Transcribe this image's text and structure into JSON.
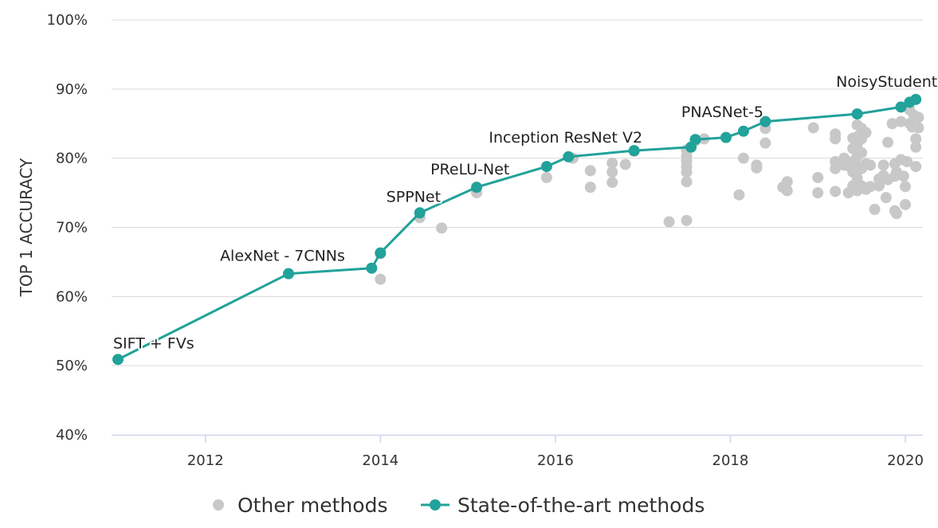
{
  "chart_data": {
    "type": "scatter",
    "xlabel": "",
    "ylabel": "TOP 1 ACCURACY",
    "xlim": [
      2011.0,
      2020.2
    ],
    "ylim": [
      40,
      100
    ],
    "x_ticks": [
      2012,
      2014,
      2016,
      2018,
      2020
    ],
    "x_tick_labels": [
      "2012",
      "2014",
      "2016",
      "2018",
      "2020"
    ],
    "y_ticks": [
      40,
      50,
      60,
      70,
      80,
      90,
      100
    ],
    "y_tick_labels": [
      "40%",
      "50%",
      "60%",
      "70%",
      "80%",
      "90%",
      "100%"
    ],
    "grid": "horizontal",
    "legend_position": "bottom",
    "colors": {
      "sota": "#21a29a",
      "other": "#c8c8c8",
      "grid": "#d9d9d9",
      "axis": "#ccd6eb"
    },
    "series": [
      {
        "name": "Other methods",
        "points": [
          [
            2014.0,
            62.5
          ],
          [
            2014.0,
            66.2
          ],
          [
            2014.45,
            71.4
          ],
          [
            2014.7,
            69.9
          ],
          [
            2015.1,
            75.0
          ],
          [
            2015.9,
            77.2
          ],
          [
            2016.2,
            80.0
          ],
          [
            2016.4,
            78.2
          ],
          [
            2016.4,
            75.8
          ],
          [
            2016.65,
            79.3
          ],
          [
            2016.65,
            78.0
          ],
          [
            2016.65,
            76.5
          ],
          [
            2016.8,
            79.1
          ],
          [
            2016.9,
            81.0
          ],
          [
            2017.3,
            70.8
          ],
          [
            2017.5,
            71.0
          ],
          [
            2017.5,
            76.6
          ],
          [
            2017.5,
            78.0
          ],
          [
            2017.5,
            78.8
          ],
          [
            2017.5,
            79.6
          ],
          [
            2017.5,
            80.3
          ],
          [
            2017.5,
            81.2
          ],
          [
            2017.6,
            82.5
          ],
          [
            2017.7,
            82.8
          ],
          [
            2018.1,
            74.7
          ],
          [
            2018.15,
            80.0
          ],
          [
            2018.3,
            78.6
          ],
          [
            2018.3,
            79.0
          ],
          [
            2018.4,
            82.2
          ],
          [
            2018.4,
            84.3
          ],
          [
            2018.6,
            75.8
          ],
          [
            2018.65,
            76.6
          ],
          [
            2018.65,
            75.3
          ],
          [
            2018.95,
            84.4
          ],
          [
            2019.0,
            77.2
          ],
          [
            2019.0,
            75.0
          ],
          [
            2019.2,
            83.5
          ],
          [
            2019.2,
            82.8
          ],
          [
            2019.2,
            79.5
          ],
          [
            2019.2,
            78.5
          ],
          [
            2019.2,
            75.2
          ],
          [
            2019.3,
            80.0
          ],
          [
            2019.3,
            79.0
          ],
          [
            2019.35,
            75.0
          ],
          [
            2019.35,
            78.9
          ],
          [
            2019.4,
            82.9
          ],
          [
            2019.4,
            81.4
          ],
          [
            2019.4,
            79.5
          ],
          [
            2019.4,
            78.0
          ],
          [
            2019.4,
            76.0
          ],
          [
            2019.45,
            84.8
          ],
          [
            2019.45,
            83.1
          ],
          [
            2019.45,
            82.0
          ],
          [
            2019.45,
            80.3
          ],
          [
            2019.45,
            79.0
          ],
          [
            2019.45,
            77.1
          ],
          [
            2019.45,
            75.3
          ],
          [
            2019.5,
            84.3
          ],
          [
            2019.5,
            82.8
          ],
          [
            2019.5,
            80.8
          ],
          [
            2019.5,
            78.5
          ],
          [
            2019.5,
            76.0
          ],
          [
            2019.55,
            83.7
          ],
          [
            2019.55,
            79.2
          ],
          [
            2019.55,
            75.5
          ],
          [
            2019.6,
            79.0
          ],
          [
            2019.6,
            75.9
          ],
          [
            2019.65,
            72.6
          ],
          [
            2019.7,
            77.0
          ],
          [
            2019.7,
            76.0
          ],
          [
            2019.75,
            79.0
          ],
          [
            2019.75,
            77.5
          ],
          [
            2019.78,
            74.3
          ],
          [
            2019.8,
            82.3
          ],
          [
            2019.8,
            76.9
          ],
          [
            2019.85,
            85.0
          ],
          [
            2019.88,
            79.2
          ],
          [
            2019.88,
            77.4
          ],
          [
            2019.88,
            72.4
          ],
          [
            2019.9,
            72.0
          ],
          [
            2019.9,
            78.0
          ],
          [
            2019.95,
            85.3
          ],
          [
            2019.95,
            79.8
          ],
          [
            2019.98,
            77.4
          ],
          [
            2020.0,
            75.9
          ],
          [
            2020.0,
            73.3
          ],
          [
            2020.02,
            79.5
          ],
          [
            2020.05,
            85.0
          ],
          [
            2020.05,
            87.0
          ],
          [
            2020.08,
            84.5
          ],
          [
            2020.1,
            86.2
          ],
          [
            2020.12,
            82.8
          ],
          [
            2020.12,
            81.6
          ],
          [
            2020.12,
            78.8
          ],
          [
            2020.15,
            85.9
          ],
          [
            2020.15,
            84.4
          ]
        ]
      },
      {
        "name": "State-of-the-art methods",
        "points": [
          [
            2011.0,
            50.9
          ],
          [
            2012.95,
            63.3
          ],
          [
            2013.9,
            64.1
          ],
          [
            2014.0,
            66.3
          ],
          [
            2014.45,
            72.1
          ],
          [
            2015.1,
            75.8
          ],
          [
            2015.9,
            78.8
          ],
          [
            2016.15,
            80.2
          ],
          [
            2016.9,
            81.1
          ],
          [
            2017.55,
            81.6
          ],
          [
            2017.6,
            82.7
          ],
          [
            2017.95,
            83.0
          ],
          [
            2018.15,
            83.9
          ],
          [
            2018.4,
            85.3
          ],
          [
            2019.45,
            86.4
          ],
          [
            2019.95,
            87.4
          ],
          [
            2020.05,
            88.1
          ],
          [
            2020.12,
            88.5
          ]
        ]
      }
    ],
    "annotations": [
      {
        "text": "SIFT + FVs",
        "x": 2011.0,
        "y": 50.9
      },
      {
        "text": "AlexNet - 7CNNs",
        "x": 2012.95,
        "y": 63.3
      },
      {
        "text": "SPPNet",
        "x": 2014.45,
        "y": 72.1
      },
      {
        "text": "PReLU-Net",
        "x": 2015.1,
        "y": 75.8
      },
      {
        "text": "Inception ResNet V2",
        "x": 2016.15,
        "y": 80.2
      },
      {
        "text": "PNASNet-5",
        "x": 2018.15,
        "y": 83.9
      },
      {
        "text": "NoisyStudent",
        "x": 2020.12,
        "y": 88.5
      }
    ]
  }
}
